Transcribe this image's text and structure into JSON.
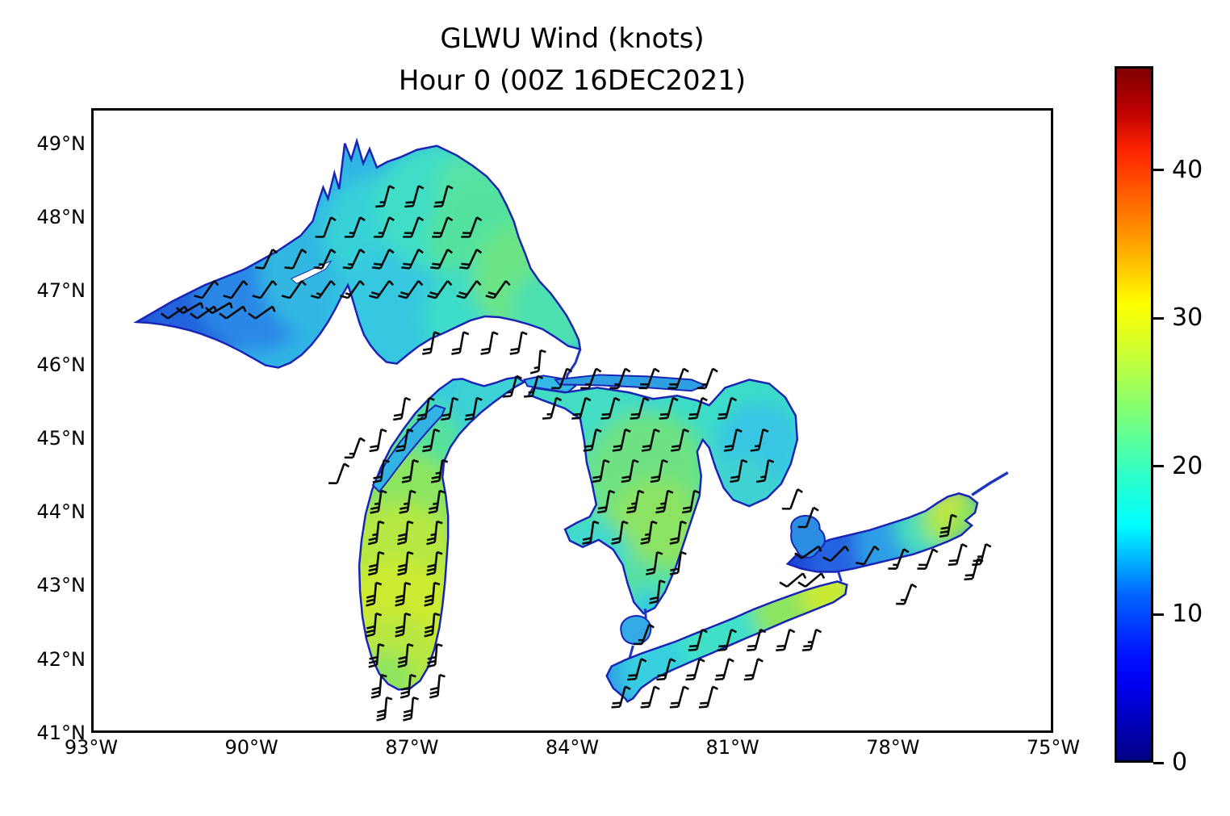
{
  "title": {
    "line1": "GLWU Wind (knots)",
    "line2": "Hour 0 (00Z 16DEC2021)"
  },
  "chart_data": {
    "type": "heatmap",
    "title": "GLWU Wind (knots)",
    "subtitle": "Hour 0 (00Z 16DEC2021)",
    "xlabel": "",
    "ylabel": "",
    "axes": {
      "x_tick_labels": [
        "93°W",
        "90°W",
        "87°W",
        "84°W",
        "81°W",
        "78°W",
        "75°W"
      ],
      "x_tick_values": [
        -93,
        -90,
        -87,
        -84,
        -81,
        -78,
        -75
      ],
      "y_tick_labels": [
        "49°N",
        "48°N",
        "47°N",
        "46°N",
        "45°N",
        "44°N",
        "43°N",
        "42°N",
        "41°N"
      ],
      "y_tick_values": [
        49,
        48,
        47,
        46,
        45,
        44,
        43,
        42,
        41
      ],
      "xlim": [
        -93,
        -75
      ],
      "ylim": [
        41,
        49.48
      ],
      "grid": false
    },
    "colorbar": {
      "tick_labels": [
        "0",
        "10",
        "20",
        "30",
        "40"
      ],
      "tick_values": [
        0,
        10,
        20,
        30,
        40
      ],
      "vmin": 0,
      "vmax": 47,
      "colormap": "jet",
      "orientation": "vertical",
      "position": "right"
    },
    "lakes": [
      {
        "name": "Lake Superior",
        "wind_kt_range": [
          8,
          22
        ],
        "pattern": "dark blue (calm) west, cyan-green (15-22 kt) east"
      },
      {
        "name": "Lake Michigan",
        "wind_kt_range": [
          18,
          30
        ],
        "pattern": "yellow-green core 25-30 kt in center/south"
      },
      {
        "name": "Lake Huron",
        "wind_kt_range": [
          15,
          25
        ],
        "pattern": "cyan with green 20-25 kt center; Georgian Bay cyan"
      },
      {
        "name": "Lake Erie",
        "wind_kt_range": [
          18,
          25
        ],
        "pattern": "cyan, yellow-green 25 kt at east end"
      },
      {
        "name": "Lake Ontario",
        "wind_kt_range": [
          8,
          28
        ],
        "pattern": "dark blue 8-10 kt west, yellow 28 kt northeast"
      },
      {
        "name": "Lake St. Clair",
        "wind_kt_range": [
          12,
          16
        ],
        "pattern": "light blue"
      },
      {
        "name": "Lake Simcoe",
        "wind_kt_range": [
          8,
          12
        ],
        "pattern": "blue"
      }
    ],
    "wind_barbs": {
      "units": "knots",
      "direction_convention": "degrees wind is coming from (180 = southerly)",
      "rows": [
        {
          "lake": "superior",
          "lat": 48.45,
          "dir": 195,
          "lons": [
            -87.45,
            -86.9,
            -86.35
          ],
          "kts": [
            15,
            18,
            18
          ]
        },
        {
          "lake": "superior",
          "lat": 48.02,
          "dir": 200,
          "lons": [
            -88.55,
            -88.0,
            -87.45,
            -86.9,
            -86.35,
            -85.8
          ],
          "kts": [
            12,
            15,
            15,
            18,
            20,
            20
          ]
        },
        {
          "lake": "superior",
          "lat": 47.58,
          "dir": 205,
          "lons": [
            -89.65,
            -89.1,
            -88.55,
            -88.0,
            -87.45,
            -86.9,
            -86.35,
            -85.8
          ],
          "kts": [
            10,
            12,
            15,
            15,
            18,
            18,
            20,
            20
          ]
        },
        {
          "lake": "superior",
          "lat": 47.15,
          "dir": 215,
          "lons": [
            -90.75,
            -90.2,
            -89.65,
            -89.1,
            -88.55,
            -88.0,
            -87.45,
            -86.9,
            -86.35,
            -85.8,
            -85.25
          ],
          "kts": [
            8,
            10,
            10,
            12,
            15,
            15,
            18,
            18,
            20,
            20,
            20
          ]
        },
        {
          "lake": "superior",
          "lat": 46.85,
          "dir": 240,
          "lons": [
            -91.0,
            -90.45
          ],
          "kts": [
            8,
            10
          ]
        },
        {
          "lake": "superior",
          "lat": 46.8,
          "dir": 235,
          "lons": [
            -91.3,
            -90.75,
            -90.2,
            -89.65
          ],
          "kts": [
            8,
            8,
            10,
            10
          ]
        },
        {
          "lake": "superior",
          "lat": 46.45,
          "dir": 190,
          "lons": [
            -86.6,
            -86.05,
            -85.5,
            -84.95
          ],
          "kts": [
            18,
            20,
            20,
            18
          ]
        },
        {
          "lake": "superior",
          "lat": 46.2,
          "dir": 185,
          "lons": [
            -84.6
          ],
          "kts": [
            15
          ]
        },
        {
          "lake": "straits-of-mackinac",
          "lat": 45.85,
          "dir": 195,
          "lons": [
            -85.05,
            -84.65
          ],
          "kts": [
            15,
            15
          ]
        },
        {
          "lake": "michigan",
          "lat": 45.55,
          "dir": 190,
          "lons": [
            -87.15,
            -86.7,
            -86.25,
            -85.8
          ],
          "kts": [
            20,
            20,
            22,
            22
          ]
        },
        {
          "lake": "michigan",
          "lat": 45.12,
          "dir": 190,
          "lons": [
            -87.6,
            -87.1,
            -86.6
          ],
          "kts": [
            20,
            22,
            22
          ]
        },
        {
          "lake": "green-bay",
          "lat": 45.0,
          "dir": 200,
          "lons": [
            -88.0
          ],
          "kts": [
            15
          ]
        },
        {
          "lake": "green-bay",
          "lat": 44.65,
          "dir": 200,
          "lons": [
            -88.3
          ],
          "kts": [
            12
          ]
        },
        {
          "lake": "michigan",
          "lat": 44.7,
          "dir": 188,
          "lons": [
            -87.55,
            -87.0,
            -86.45
          ],
          "kts": [
            22,
            22,
            25
          ]
        },
        {
          "lake": "michigan",
          "lat": 44.28,
          "dir": 188,
          "lons": [
            -87.6,
            -87.05,
            -86.5
          ],
          "kts": [
            25,
            25,
            25
          ]
        },
        {
          "lake": "michigan",
          "lat": 43.86,
          "dir": 186,
          "lons": [
            -87.65,
            -87.1,
            -86.55
          ],
          "kts": [
            25,
            28,
            25
          ]
        },
        {
          "lake": "michigan",
          "lat": 43.44,
          "dir": 186,
          "lons": [
            -87.65,
            -87.1,
            -86.55
          ],
          "kts": [
            28,
            28,
            28
          ]
        },
        {
          "lake": "michigan",
          "lat": 43.02,
          "dir": 185,
          "lons": [
            -87.7,
            -87.15,
            -86.6
          ],
          "kts": [
            28,
            30,
            28
          ]
        },
        {
          "lake": "michigan",
          "lat": 42.6,
          "dir": 185,
          "lons": [
            -87.7,
            -87.15,
            -86.6
          ],
          "kts": [
            28,
            30,
            28
          ]
        },
        {
          "lake": "michigan",
          "lat": 42.18,
          "dir": 185,
          "lons": [
            -87.65,
            -87.1,
            -86.55
          ],
          "kts": [
            30,
            30,
            28
          ]
        },
        {
          "lake": "michigan",
          "lat": 41.76,
          "dir": 185,
          "lons": [
            -87.6,
            -87.05,
            -86.5
          ],
          "kts": [
            30,
            28,
            28
          ]
        },
        {
          "lake": "michigan",
          "lat": 41.45,
          "dir": 185,
          "lons": [
            -87.5,
            -87.0
          ],
          "kts": [
            28,
            28
          ]
        },
        {
          "lake": "huron-north-channel",
          "lat": 45.95,
          "dir": 200,
          "lons": [
            -84.1,
            -83.55,
            -83.0,
            -82.45,
            -81.9,
            -81.35
          ],
          "kts": [
            12,
            15,
            15,
            18,
            18,
            15
          ]
        },
        {
          "lake": "huron",
          "lat": 45.55,
          "dir": 195,
          "lons": [
            -84.3,
            -83.75,
            -83.2,
            -82.65,
            -82.1,
            -81.55,
            -81.0
          ],
          "kts": [
            15,
            18,
            18,
            20,
            20,
            18,
            18
          ]
        },
        {
          "lake": "huron",
          "lat": 45.12,
          "dir": 192,
          "lons": [
            -83.55,
            -83.0,
            -82.45,
            -81.9,
            -80.9,
            -80.4
          ],
          "kts": [
            18,
            20,
            20,
            22,
            18,
            15
          ]
        },
        {
          "lake": "huron",
          "lat": 44.7,
          "dir": 190,
          "lons": [
            -83.4,
            -82.85,
            -82.3,
            -80.8,
            -80.3
          ],
          "kts": [
            20,
            22,
            22,
            18,
            15
          ]
        },
        {
          "lake": "huron",
          "lat": 44.28,
          "dir": 190,
          "lons": [
            -83.3,
            -82.75,
            -82.2,
            -81.7
          ],
          "kts": [
            20,
            25,
            25,
            22
          ]
        },
        {
          "lake": "huron",
          "lat": 43.86,
          "dir": 188,
          "lons": [
            -83.6,
            -83.05,
            -82.5,
            -81.95
          ],
          "kts": [
            18,
            20,
            25,
            22
          ]
        },
        {
          "lake": "huron",
          "lat": 43.44,
          "dir": 188,
          "lons": [
            -82.4,
            -81.95
          ],
          "kts": [
            22,
            20
          ]
        },
        {
          "lake": "huron",
          "lat": 43.05,
          "dir": 186,
          "lons": [
            -82.35
          ],
          "kts": [
            20
          ]
        },
        {
          "lake": "st-clair",
          "lat": 42.45,
          "dir": 200,
          "lons": [
            -82.55
          ],
          "kts": [
            15
          ]
        },
        {
          "lake": "erie",
          "lat": 42.38,
          "dir": 195,
          "lons": [
            -81.55,
            -81.0,
            -80.45,
            -79.9,
            -79.4
          ],
          "kts": [
            20,
            20,
            22,
            22,
            25
          ]
        },
        {
          "lake": "erie",
          "lat": 41.98,
          "dir": 195,
          "lons": [
            -82.7,
            -82.15,
            -81.6,
            -81.05,
            -80.5
          ],
          "kts": [
            18,
            20,
            20,
            20,
            20
          ]
        },
        {
          "lake": "erie",
          "lat": 41.6,
          "dir": 195,
          "lons": [
            -83.0,
            -82.45,
            -81.9,
            -81.35
          ],
          "kts": [
            18,
            18,
            20,
            20
          ]
        },
        {
          "lake": "ontario",
          "lat": 43.52,
          "dirs": [
            235,
            225,
            210
          ],
          "lons": [
            -79.35,
            -78.85,
            -78.3
          ],
          "kts": [
            8,
            10,
            12
          ]
        },
        {
          "lake": "ontario",
          "lat": 43.48,
          "dir": 200,
          "lons": [
            -77.75,
            -77.2
          ],
          "kts": [
            15,
            18
          ]
        },
        {
          "lake": "ontario",
          "lat": 43.55,
          "dir": 195,
          "lons": [
            -76.65,
            -76.2
          ],
          "kts": [
            22,
            25
          ]
        },
        {
          "lake": "ontario",
          "lat": 43.95,
          "dir": 190,
          "lons": [
            -76.85
          ],
          "kts": [
            28
          ]
        },
        {
          "lake": "ontario",
          "lat": 43.15,
          "dir": 230,
          "lons": [
            -79.65,
            -79.3
          ],
          "kts": [
            8,
            8
          ]
        },
        {
          "lake": "ontario",
          "lat": 43.0,
          "dir": 200,
          "lons": [
            -77.6
          ],
          "kts": [
            15
          ]
        },
        {
          "lake": "ontario",
          "lat": 43.35,
          "dir": 195,
          "lons": [
            -76.35
          ],
          "kts": [
            22
          ]
        },
        {
          "lake": "simcoe",
          "lat": 44.3,
          "dir": 200,
          "lons": [
            -79.75
          ],
          "kts": [
            10
          ]
        },
        {
          "lake": "simcoe",
          "lat": 44.05,
          "dir": 200,
          "lons": [
            -79.45
          ],
          "kts": [
            12
          ]
        }
      ]
    },
    "jet_colormap_stops": [
      "#000083",
      "#0000f1",
      "#00ffff",
      "#7dff7a",
      "#ffff00",
      "#ff2500",
      "#800000"
    ]
  }
}
